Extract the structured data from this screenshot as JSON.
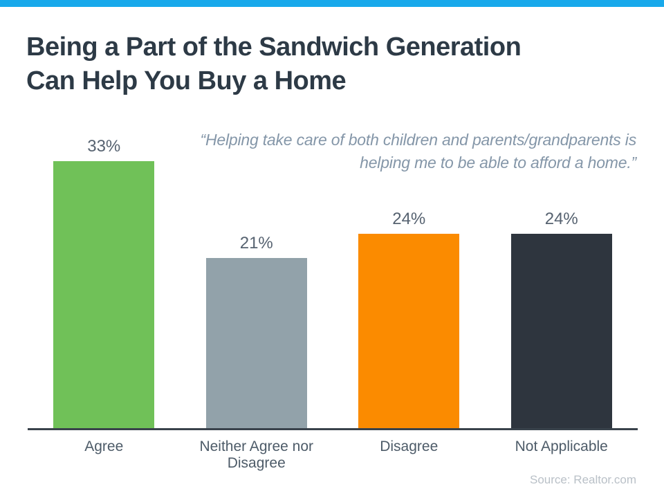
{
  "accent_color": "#18a9eb",
  "header": {
    "title_lines": [
      "Being a Part of the Sandwich Generation",
      "Can Help You Buy a Home"
    ]
  },
  "quote": {
    "lines": [
      "“Helping take care of both children and parents/grandparents is",
      "helping me to be able to afford a home.”"
    ]
  },
  "chart_data": {
    "type": "bar",
    "title": "Being a Part of the Sandwich Generation Can Help You Buy a Home",
    "categories": [
      "Agree",
      "Neither Agree nor Disagree",
      "Disagree",
      "Not Applicable"
    ],
    "values": [
      33,
      21,
      24,
      24
    ],
    "value_labels": [
      "33%",
      "21%",
      "24%",
      "24%"
    ],
    "bar_colors": [
      "#70c158",
      "#92a2aa",
      "#fb8b00",
      "#2e353e"
    ],
    "xlabel": "",
    "ylabel": "",
    "ylim": [
      0,
      37.5
    ],
    "grid": false,
    "legend": false
  },
  "source": {
    "label": "Source: Realtor.com"
  }
}
